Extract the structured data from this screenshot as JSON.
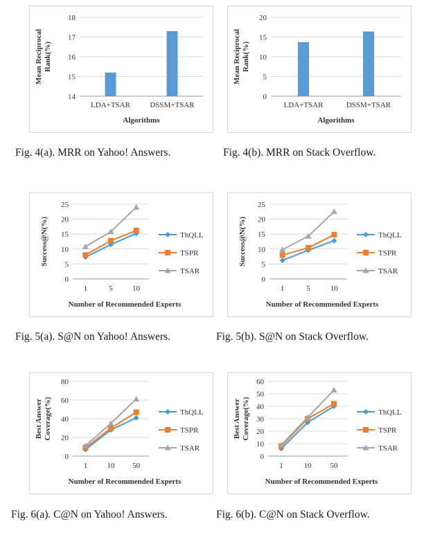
{
  "colors": {
    "bar": "#5b9bd5",
    "ThQLL": "#4a9ad4",
    "TSPR": "#ed7d31",
    "TSAR": "#a5a5a5",
    "grid": "#d9d9d9"
  },
  "captions": {
    "c4a": "Fig. 4(a). MRR on Yahoo! Answers.",
    "c4b": "Fig. 4(b). MRR on Stack Overflow.",
    "c5a": "Fig. 5(a). S@N on Yahoo! Answers.",
    "c5b": "Fig. 5(b). S@N on Stack Overflow.",
    "c6a": "Fig. 6(a). C@N on Yahoo! Answers.",
    "c6b": "Fig. 6(b). C@N on Stack Overflow."
  },
  "chart_data": [
    {
      "id": "fig4a",
      "type": "bar",
      "categories": [
        "LDA+TSAR",
        "DSSM+TSAR"
      ],
      "values": [
        15.2,
        17.3
      ],
      "xlabel": "Algorithms",
      "ylabel": [
        "Mean Reciprocal",
        "Rank(%)"
      ],
      "ylim": [
        14,
        18
      ],
      "yticks": [
        14,
        15,
        16,
        17,
        18
      ],
      "grid": true
    },
    {
      "id": "fig4b",
      "type": "bar",
      "categories": [
        "LDA+TSAR",
        "DSSM+TSAR"
      ],
      "values": [
        13.7,
        16.4
      ],
      "xlabel": "Algorithms",
      "ylabel": [
        "Mean Reciprocal",
        "Rank(%)"
      ],
      "ylim": [
        0,
        20
      ],
      "yticks": [
        0,
        5,
        10,
        15,
        20
      ],
      "grid": true
    },
    {
      "id": "fig5a",
      "type": "line",
      "categories": [
        "1",
        "5",
        "10"
      ],
      "series": [
        {
          "name": "ThQLL",
          "values": [
            7.3,
            11.5,
            15.2
          ]
        },
        {
          "name": "TSPR",
          "values": [
            8.0,
            12.8,
            16.2
          ]
        },
        {
          "name": "TSAR",
          "values": [
            10.8,
            15.8,
            24.0
          ]
        }
      ],
      "xlabel": "Number of Recommended Experts",
      "ylabel": [
        "Success@N(%)"
      ],
      "ylim": [
        0,
        25
      ],
      "yticks": [
        0,
        5,
        10,
        15,
        20,
        25
      ],
      "grid": true,
      "legend": "right"
    },
    {
      "id": "fig5b",
      "type": "line",
      "categories": [
        "1",
        "5",
        "10"
      ],
      "series": [
        {
          "name": "ThQLL",
          "values": [
            6.2,
            9.6,
            12.8
          ]
        },
        {
          "name": "TSPR",
          "values": [
            8.0,
            10.4,
            14.8
          ]
        },
        {
          "name": "TSAR",
          "values": [
            9.8,
            14.3,
            22.5
          ]
        }
      ],
      "xlabel": "Number of Recommended Experts",
      "ylabel": [
        "Success@N(%)"
      ],
      "ylim": [
        0,
        25
      ],
      "yticks": [
        0,
        5,
        10,
        15,
        20,
        25
      ],
      "grid": true,
      "legend": "right"
    },
    {
      "id": "fig6a",
      "type": "line",
      "categories": [
        "1",
        "10",
        "50"
      ],
      "series": [
        {
          "name": "ThQLL",
          "values": [
            7,
            28,
            41
          ]
        },
        {
          "name": "TSPR",
          "values": [
            9,
            30,
            47
          ]
        },
        {
          "name": "TSAR",
          "values": [
            11,
            35,
            61
          ]
        }
      ],
      "xlabel": "Number of Recommended Experts",
      "ylabel": [
        "Best Answer",
        "Coverage(%)"
      ],
      "ylim": [
        0,
        80
      ],
      "yticks": [
        0,
        20,
        40,
        60,
        80
      ],
      "grid": true,
      "legend": "right"
    },
    {
      "id": "fig6b",
      "type": "line",
      "categories": [
        "1",
        "10",
        "50"
      ],
      "series": [
        {
          "name": "ThQLL",
          "values": [
            6,
            27,
            40
          ]
        },
        {
          "name": "TSPR",
          "values": [
            8,
            30,
            42
          ]
        },
        {
          "name": "TSAR",
          "values": [
            9,
            31,
            53
          ]
        }
      ],
      "xlabel": "Number of Recommended Experts",
      "ylabel": [
        "Best Answer",
        "Coverage(%)"
      ],
      "ylim": [
        0,
        60
      ],
      "yticks": [
        0,
        10,
        20,
        30,
        40,
        50,
        60
      ],
      "grid": true,
      "legend": "right"
    }
  ]
}
